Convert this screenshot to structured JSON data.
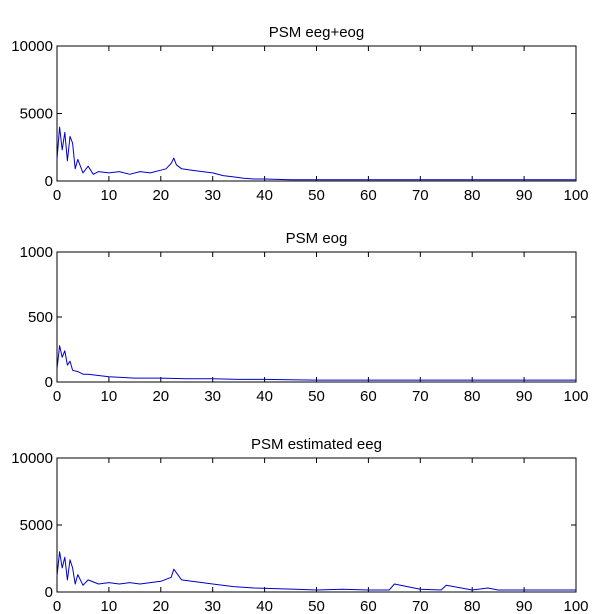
{
  "chart_data": [
    {
      "type": "line",
      "title": "PSM eeg+eog",
      "xlabel": "",
      "ylabel": "",
      "xlim": [
        0,
        100
      ],
      "ylim": [
        0,
        10000
      ],
      "x_ticks": [
        0,
        10,
        20,
        30,
        40,
        50,
        60,
        70,
        80,
        90,
        100
      ],
      "y_ticks": [
        0,
        5000,
        10000
      ],
      "grid": false,
      "series": [
        {
          "color": "#0000cc",
          "x": [
            0,
            0.5,
            1,
            1.5,
            2,
            2.5,
            3,
            3.5,
            4,
            5,
            6,
            7,
            8,
            10,
            12,
            14,
            16,
            18,
            20,
            21,
            22,
            22.5,
            23,
            24,
            26,
            28,
            30,
            32,
            34,
            36,
            38,
            40,
            45,
            50,
            60,
            70,
            80,
            90,
            100
          ],
          "y": [
            1600,
            4000,
            2300,
            3600,
            1500,
            3300,
            2800,
            900,
            1600,
            600,
            1100,
            500,
            700,
            600,
            700,
            500,
            700,
            600,
            800,
            900,
            1300,
            1700,
            1200,
            900,
            800,
            700,
            600,
            400,
            300,
            200,
            150,
            150,
            100,
            100,
            100,
            100,
            100,
            100,
            100
          ]
        }
      ]
    },
    {
      "type": "line",
      "title": "PSM eog",
      "xlabel": "",
      "ylabel": "",
      "xlim": [
        0,
        100
      ],
      "ylim": [
        0,
        1000
      ],
      "x_ticks": [
        0,
        10,
        20,
        30,
        40,
        50,
        60,
        70,
        80,
        90,
        100
      ],
      "y_ticks": [
        0,
        500,
        1000
      ],
      "grid": false,
      "series": [
        {
          "color": "#0000cc",
          "x": [
            0,
            0.5,
            1,
            1.5,
            2,
            2.5,
            3,
            4,
            5,
            6,
            8,
            10,
            15,
            20,
            25,
            30,
            35,
            40,
            50,
            60,
            70,
            80,
            90,
            100
          ],
          "y": [
            100,
            280,
            190,
            240,
            130,
            160,
            90,
            80,
            60,
            60,
            50,
            40,
            30,
            30,
            25,
            25,
            20,
            20,
            15,
            15,
            15,
            15,
            15,
            15
          ]
        }
      ]
    },
    {
      "type": "line",
      "title": "PSM estimated eeg",
      "xlabel": "",
      "ylabel": "",
      "xlim": [
        0,
        100
      ],
      "ylim": [
        0,
        10000
      ],
      "x_ticks": [
        0,
        10,
        20,
        30,
        40,
        50,
        60,
        70,
        80,
        90,
        100
      ],
      "y_ticks": [
        0,
        5000,
        10000
      ],
      "grid": false,
      "series": [
        {
          "color": "#0000cc",
          "x": [
            0,
            0.5,
            1,
            1.5,
            2,
            2.5,
            3,
            3.5,
            4,
            5,
            6,
            8,
            10,
            12,
            14,
            16,
            18,
            20,
            22,
            22.5,
            24,
            26,
            28,
            30,
            34,
            38,
            42,
            46,
            50,
            55,
            60,
            64,
            65,
            70,
            74,
            75,
            80,
            83,
            85,
            90,
            100
          ],
          "y": [
            1200,
            3000,
            1800,
            2600,
            900,
            2400,
            1800,
            600,
            1300,
            500,
            900,
            600,
            700,
            600,
            700,
            600,
            700,
            800,
            1100,
            1700,
            900,
            800,
            700,
            600,
            400,
            300,
            250,
            200,
            150,
            200,
            150,
            150,
            600,
            200,
            150,
            500,
            150,
            300,
            150,
            150,
            150
          ]
        }
      ]
    }
  ]
}
